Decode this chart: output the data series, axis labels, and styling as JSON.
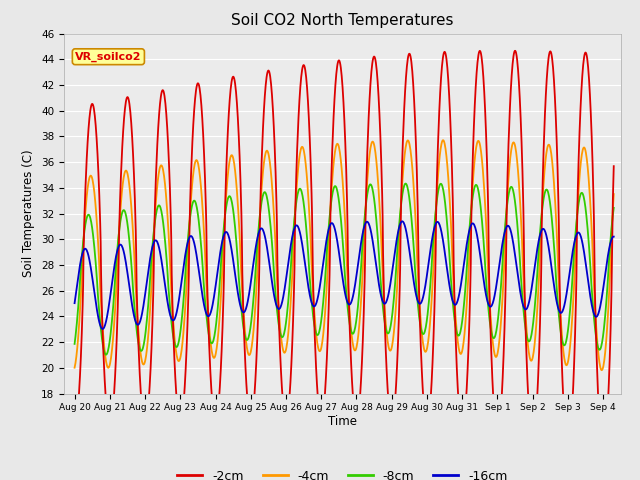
{
  "title": "Soil CO2 North Temperatures",
  "xlabel": "Time",
  "ylabel": "Soil Temperatures (C)",
  "ylim": [
    18,
    46
  ],
  "yticks": [
    18,
    20,
    22,
    24,
    26,
    28,
    30,
    32,
    34,
    36,
    38,
    40,
    42,
    44,
    46
  ],
  "colors": {
    "-2cm": "#dd0000",
    "-4cm": "#ff9900",
    "-8cm": "#33cc00",
    "-16cm": "#0000cc"
  },
  "legend_labels": [
    "-2cm",
    "-4cm",
    "-8cm",
    "-16cm"
  ],
  "annotation_text": "VR_soilco2",
  "annotation_bg": "#ffff99",
  "annotation_border": "#cc8800",
  "background_color": "#e8e8e8",
  "plot_bg_color": "#ebebeb",
  "grid_color": "#ffffff",
  "line_width": 1.3,
  "day_labels": [
    "Aug 20",
    "Aug 21",
    "Aug 22",
    "Aug 23",
    "Aug 24",
    "Aug 25",
    "Aug 26",
    "Aug 27",
    "Aug 28",
    "Aug 29",
    "Aug 30",
    "Aug 31",
    "Sep 1",
    "Sep 2",
    "Sep 3",
    "Sep 4"
  ]
}
